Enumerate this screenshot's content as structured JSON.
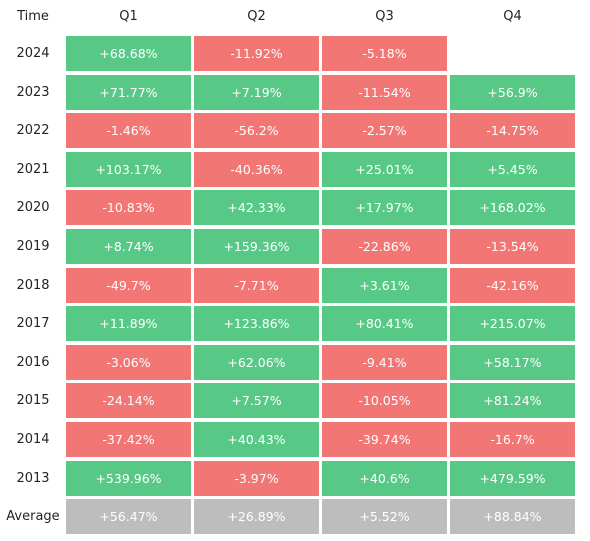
{
  "chart_data": {
    "type": "table",
    "corner_label": "Time",
    "columns": [
      "Q1",
      "Q2",
      "Q3",
      "Q4"
    ],
    "rows": [
      {
        "label": "2024",
        "values": [
          "+68.68%",
          "-11.92%",
          "-5.18%",
          ""
        ]
      },
      {
        "label": "2023",
        "values": [
          "+71.77%",
          "+7.19%",
          "-11.54%",
          "+56.9%"
        ]
      },
      {
        "label": "2022",
        "values": [
          "-1.46%",
          "-56.2%",
          "-2.57%",
          "-14.75%"
        ]
      },
      {
        "label": "2021",
        "values": [
          "+103.17%",
          "-40.36%",
          "+25.01%",
          "+5.45%"
        ]
      },
      {
        "label": "2020",
        "values": [
          "-10.83%",
          "+42.33%",
          "+17.97%",
          "+168.02%"
        ]
      },
      {
        "label": "2019",
        "values": [
          "+8.74%",
          "+159.36%",
          "-22.86%",
          "-13.54%"
        ]
      },
      {
        "label": "2018",
        "values": [
          "-49.7%",
          "-7.71%",
          "+3.61%",
          "-42.16%"
        ]
      },
      {
        "label": "2017",
        "values": [
          "+11.89%",
          "+123.86%",
          "+80.41%",
          "+215.07%"
        ]
      },
      {
        "label": "2016",
        "values": [
          "-3.06%",
          "+62.06%",
          "-9.41%",
          "+58.17%"
        ]
      },
      {
        "label": "2015",
        "values": [
          "-24.14%",
          "+7.57%",
          "-10.05%",
          "+81.24%"
        ]
      },
      {
        "label": "2014",
        "values": [
          "-37.42%",
          "+40.43%",
          "-39.74%",
          "-16.7%"
        ]
      },
      {
        "label": "2013",
        "values": [
          "+539.96%",
          "-3.97%",
          "+40.6%",
          "+479.59%"
        ]
      }
    ],
    "average": {
      "label": "Average",
      "values": [
        "+56.47%",
        "+26.89%",
        "+5.52%",
        "+88.84%"
      ]
    },
    "colors": {
      "positive": "#58c887",
      "negative": "#f27674",
      "average": "#bdbdbd"
    }
  }
}
